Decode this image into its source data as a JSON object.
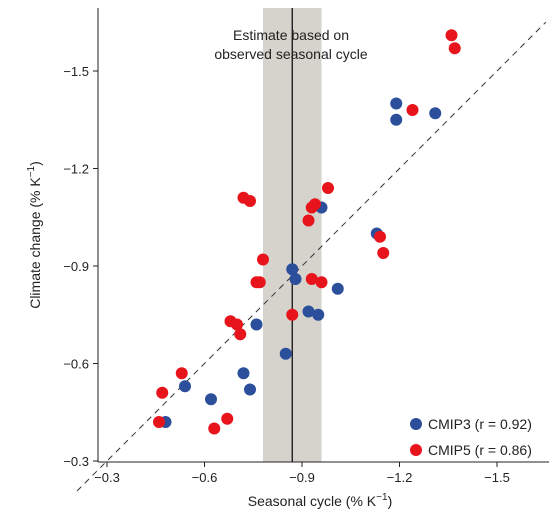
{
  "chart_data": {
    "type": "scatter",
    "title": "",
    "xlabel": {
      "main": "Seasonal cycle (% K",
      "sup": "−1",
      "close": ")"
    },
    "ylabel": {
      "main": "Climate change (% K",
      "sup": "−1",
      "close": ")"
    },
    "x_axis_reversed_display": true,
    "xlim": [
      -0.3,
      -1.65
    ],
    "ylim": [
      -0.3,
      -1.65
    ],
    "x_ticks": [
      -0.3,
      -0.6,
      -0.9,
      -1.2,
      -1.5
    ],
    "x_tick_labels": [
      "−0.3",
      "−0.6",
      "−0.9",
      "−1.2",
      "−1.5"
    ],
    "y_ticks": [
      -0.3,
      -0.6,
      -0.9,
      -1.2,
      -1.5
    ],
    "y_tick_labels": [
      "−0.3",
      "−0.6",
      "−0.9",
      "−1.2",
      "−1.5"
    ],
    "grid": false,
    "legend_position": "bottom-right",
    "annotation": {
      "lines": [
        "Estimate based on",
        "observed seasonal cycle"
      ],
      "estimate_x": -0.87,
      "range_x": [
        -0.78,
        -0.96
      ],
      "band_color": "#d6d2cc"
    },
    "reference_line": {
      "style": "dashed",
      "from": [
        -0.3,
        -0.3
      ],
      "to": [
        -1.65,
        -1.65
      ]
    },
    "series": [
      {
        "name": "CMIP3",
        "label": "CMIP3 (r = 0.92)",
        "color": "#2b4f9b",
        "points": [
          [
            -0.48,
            -0.42
          ],
          [
            -0.54,
            -0.53
          ],
          [
            -0.62,
            -0.49
          ],
          [
            -0.72,
            -0.57
          ],
          [
            -0.74,
            -0.52
          ],
          [
            -0.76,
            -0.72
          ],
          [
            -0.85,
            -0.63
          ],
          [
            -0.87,
            -0.89
          ],
          [
            -0.88,
            -0.86
          ],
          [
            -0.92,
            -0.76
          ],
          [
            -0.95,
            -0.75
          ],
          [
            -0.96,
            -1.08
          ],
          [
            -1.01,
            -0.83
          ],
          [
            -1.13,
            -1.0
          ],
          [
            -1.19,
            -1.4
          ],
          [
            -1.19,
            -1.35
          ],
          [
            -1.31,
            -1.37
          ]
        ]
      },
      {
        "name": "CMIP5",
        "label": "CMIP5 (r = 0.86)",
        "color": "#e8141c",
        "points": [
          [
            -0.46,
            -0.42
          ],
          [
            -0.47,
            -0.51
          ],
          [
            -0.53,
            -0.57
          ],
          [
            -0.63,
            -0.4
          ],
          [
            -0.67,
            -0.43
          ],
          [
            -0.68,
            -0.73
          ],
          [
            -0.7,
            -0.72
          ],
          [
            -0.71,
            -0.69
          ],
          [
            -0.72,
            -1.11
          ],
          [
            -0.74,
            -1.1
          ],
          [
            -0.76,
            -0.85
          ],
          [
            -0.77,
            -0.85
          ],
          [
            -0.78,
            -0.92
          ],
          [
            -0.87,
            -0.75
          ],
          [
            -0.92,
            -1.04
          ],
          [
            -0.93,
            -1.08
          ],
          [
            -0.93,
            -0.86
          ],
          [
            -0.94,
            -1.09
          ],
          [
            -0.96,
            -0.85
          ],
          [
            -0.98,
            -1.14
          ],
          [
            -1.14,
            -0.99
          ],
          [
            -1.15,
            -0.94
          ],
          [
            -1.24,
            -1.38
          ],
          [
            -1.36,
            -1.61
          ],
          [
            -1.37,
            -1.57
          ]
        ]
      }
    ]
  }
}
